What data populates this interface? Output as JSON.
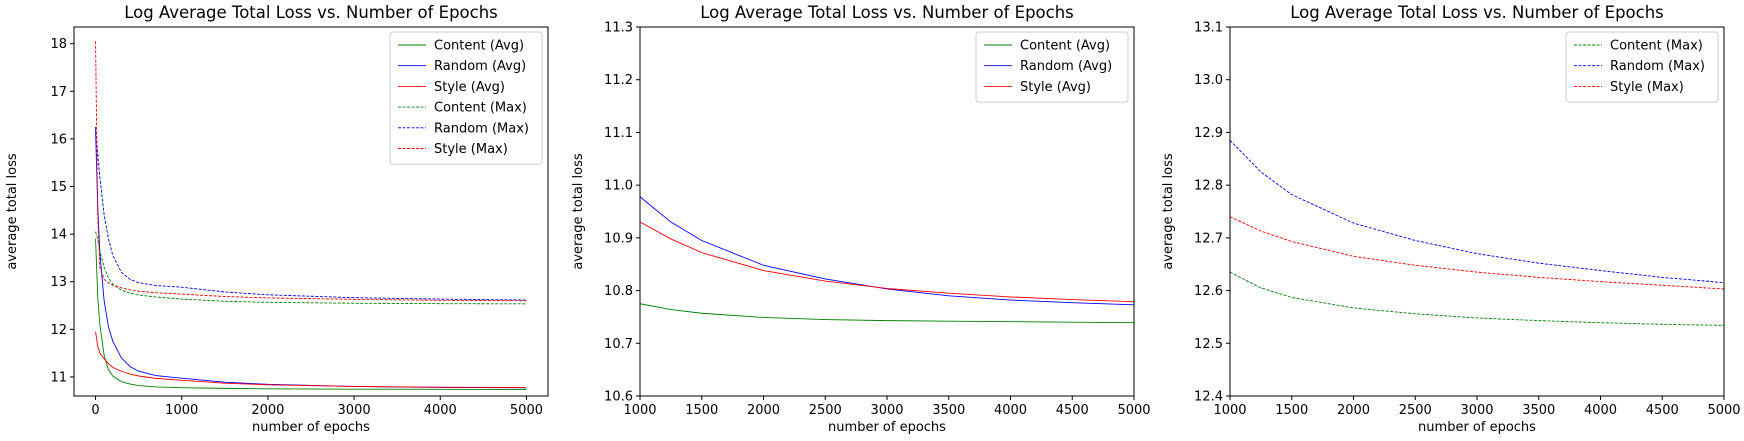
{
  "chart_data": [
    {
      "type": "line",
      "title": "Log Average Total Loss vs. Number of Epochs",
      "xlabel": "number of epochs",
      "ylabel": "average total loss",
      "xlim": [
        -250,
        5250
      ],
      "ylim": [
        10.6,
        18.35
      ],
      "xticks": [
        0,
        1000,
        2000,
        3000,
        4000,
        5000
      ],
      "yticks": [
        11,
        12,
        13,
        14,
        15,
        16,
        17,
        18
      ],
      "tick_decimals": 0,
      "legend": "top-right",
      "grid": false,
      "series": [
        {
          "name": "Content (Avg)",
          "color": "#008000",
          "dash": "solid",
          "x": [
            0,
            25,
            50,
            100,
            150,
            200,
            300,
            400,
            500,
            700,
            1000,
            1500,
            2000,
            3000,
            4000,
            5000
          ],
          "y": [
            13.9,
            12.7,
            12.1,
            11.45,
            11.15,
            11.02,
            10.9,
            10.85,
            10.82,
            10.79,
            10.775,
            10.76,
            10.75,
            10.743,
            10.74,
            10.738
          ]
        },
        {
          "name": "Random (Avg)",
          "color": "#0000ff",
          "dash": "solid",
          "x": [
            0,
            25,
            50,
            100,
            150,
            200,
            300,
            400,
            500,
            700,
            1000,
            1500,
            2000,
            3000,
            4000,
            5000
          ],
          "y": [
            16.2,
            14.6,
            13.6,
            12.6,
            12.05,
            11.75,
            11.4,
            11.22,
            11.12,
            11.03,
            10.975,
            10.89,
            10.845,
            10.8,
            10.78,
            10.772
          ]
        },
        {
          "name": "Style (Avg)",
          "color": "#ff0000",
          "dash": "solid",
          "x": [
            0,
            25,
            50,
            100,
            150,
            200,
            300,
            400,
            500,
            700,
            1000,
            1500,
            2000,
            3000,
            4000,
            5000
          ],
          "y": [
            11.95,
            11.65,
            11.5,
            11.38,
            11.28,
            11.2,
            11.12,
            11.06,
            11.02,
            10.97,
            10.93,
            10.87,
            10.835,
            10.8,
            10.785,
            10.778
          ]
        },
        {
          "name": "Content (Max)",
          "color": "#008000",
          "dash": "dashed",
          "x": [
            0,
            25,
            50,
            100,
            150,
            200,
            300,
            400,
            500,
            700,
            1000,
            1500,
            2000,
            3000,
            4000,
            5000
          ],
          "y": [
            14.05,
            13.9,
            13.65,
            13.3,
            13.08,
            12.95,
            12.82,
            12.76,
            12.72,
            12.68,
            12.635,
            12.59,
            12.567,
            12.548,
            12.54,
            12.535
          ]
        },
        {
          "name": "Random (Max)",
          "color": "#0000ff",
          "dash": "dashed",
          "x": [
            0,
            25,
            50,
            100,
            150,
            200,
            300,
            400,
            500,
            700,
            1000,
            1500,
            2000,
            3000,
            4000,
            5000
          ],
          "y": [
            16.25,
            15.7,
            15.2,
            14.4,
            13.9,
            13.55,
            13.2,
            13.05,
            12.98,
            12.92,
            12.885,
            12.785,
            12.725,
            12.665,
            12.635,
            12.615
          ]
        },
        {
          "name": "Style (Max)",
          "color": "#ff0000",
          "dash": "dashed",
          "x": [
            0,
            25,
            50,
            100,
            150,
            200,
            300,
            400,
            500,
            700,
            1000,
            1500,
            2000,
            3000,
            4000,
            5000
          ],
          "y": [
            18.05,
            14.4,
            13.3,
            13.05,
            12.98,
            12.93,
            12.87,
            12.83,
            12.8,
            12.77,
            12.74,
            12.69,
            12.66,
            12.63,
            12.61,
            12.6
          ]
        }
      ]
    },
    {
      "type": "line",
      "title": "Log Average Total Loss vs. Number of Epochs",
      "xlabel": "number of epochs",
      "ylabel": "average total loss",
      "xlim": [
        1000,
        5000
      ],
      "ylim": [
        10.6,
        11.3
      ],
      "xticks": [
        1000,
        1500,
        2000,
        2500,
        3000,
        3500,
        4000,
        4500,
        5000
      ],
      "yticks": [
        10.6,
        10.7,
        10.8,
        10.9,
        11.0,
        11.1,
        11.2,
        11.3
      ],
      "tick_decimals": 1,
      "legend": "top-right",
      "grid": false,
      "series": [
        {
          "name": "Content (Avg)",
          "color": "#008000",
          "dash": "solid",
          "x": [
            1000,
            1250,
            1500,
            2000,
            2500,
            3000,
            3500,
            4000,
            4500,
            5000
          ],
          "y": [
            10.775,
            10.764,
            10.757,
            10.749,
            10.745,
            10.743,
            10.742,
            10.741,
            10.74,
            10.739
          ]
        },
        {
          "name": "Random (Avg)",
          "color": "#0000ff",
          "dash": "solid",
          "x": [
            1000,
            1250,
            1500,
            2000,
            2500,
            3000,
            3500,
            4000,
            4500,
            5000
          ],
          "y": [
            10.978,
            10.93,
            10.895,
            10.848,
            10.822,
            10.803,
            10.79,
            10.782,
            10.777,
            10.773
          ]
        },
        {
          "name": "Style (Avg)",
          "color": "#ff0000",
          "dash": "solid",
          "x": [
            1000,
            1250,
            1500,
            2000,
            2500,
            3000,
            3500,
            4000,
            4500,
            5000
          ],
          "y": [
            10.93,
            10.898,
            10.872,
            10.838,
            10.818,
            10.804,
            10.795,
            10.788,
            10.783,
            10.779
          ]
        }
      ]
    },
    {
      "type": "line",
      "title": "Log Average Total Loss vs. Number of Epochs",
      "xlabel": "number of epochs",
      "ylabel": "average total loss",
      "xlim": [
        1000,
        5000
      ],
      "ylim": [
        12.4,
        13.1
      ],
      "xticks": [
        1000,
        1500,
        2000,
        2500,
        3000,
        3500,
        4000,
        4500,
        5000
      ],
      "yticks": [
        12.4,
        12.5,
        12.6,
        12.7,
        12.8,
        12.9,
        13.0,
        13.1
      ],
      "tick_decimals": 1,
      "legend": "top-right",
      "grid": false,
      "series": [
        {
          "name": "Content (Max)",
          "color": "#008000",
          "dash": "dashed",
          "x": [
            1000,
            1250,
            1500,
            2000,
            2500,
            3000,
            3500,
            4000,
            4500,
            5000
          ],
          "y": [
            12.635,
            12.605,
            12.587,
            12.567,
            12.556,
            12.548,
            12.543,
            12.539,
            12.536,
            12.534
          ]
        },
        {
          "name": "Random (Max)",
          "color": "#0000ff",
          "dash": "dashed",
          "x": [
            1000,
            1250,
            1500,
            2000,
            2500,
            3000,
            3500,
            4000,
            4500,
            5000
          ],
          "y": [
            12.885,
            12.825,
            12.782,
            12.728,
            12.695,
            12.67,
            12.652,
            12.638,
            12.625,
            12.615
          ]
        },
        {
          "name": "Style (Max)",
          "color": "#ff0000",
          "dash": "dashed",
          "x": [
            1000,
            1250,
            1500,
            2000,
            2500,
            3000,
            3500,
            4000,
            4500,
            5000
          ],
          "y": [
            12.74,
            12.713,
            12.693,
            12.665,
            12.648,
            12.635,
            12.625,
            12.617,
            12.61,
            12.603
          ]
        }
      ]
    }
  ]
}
